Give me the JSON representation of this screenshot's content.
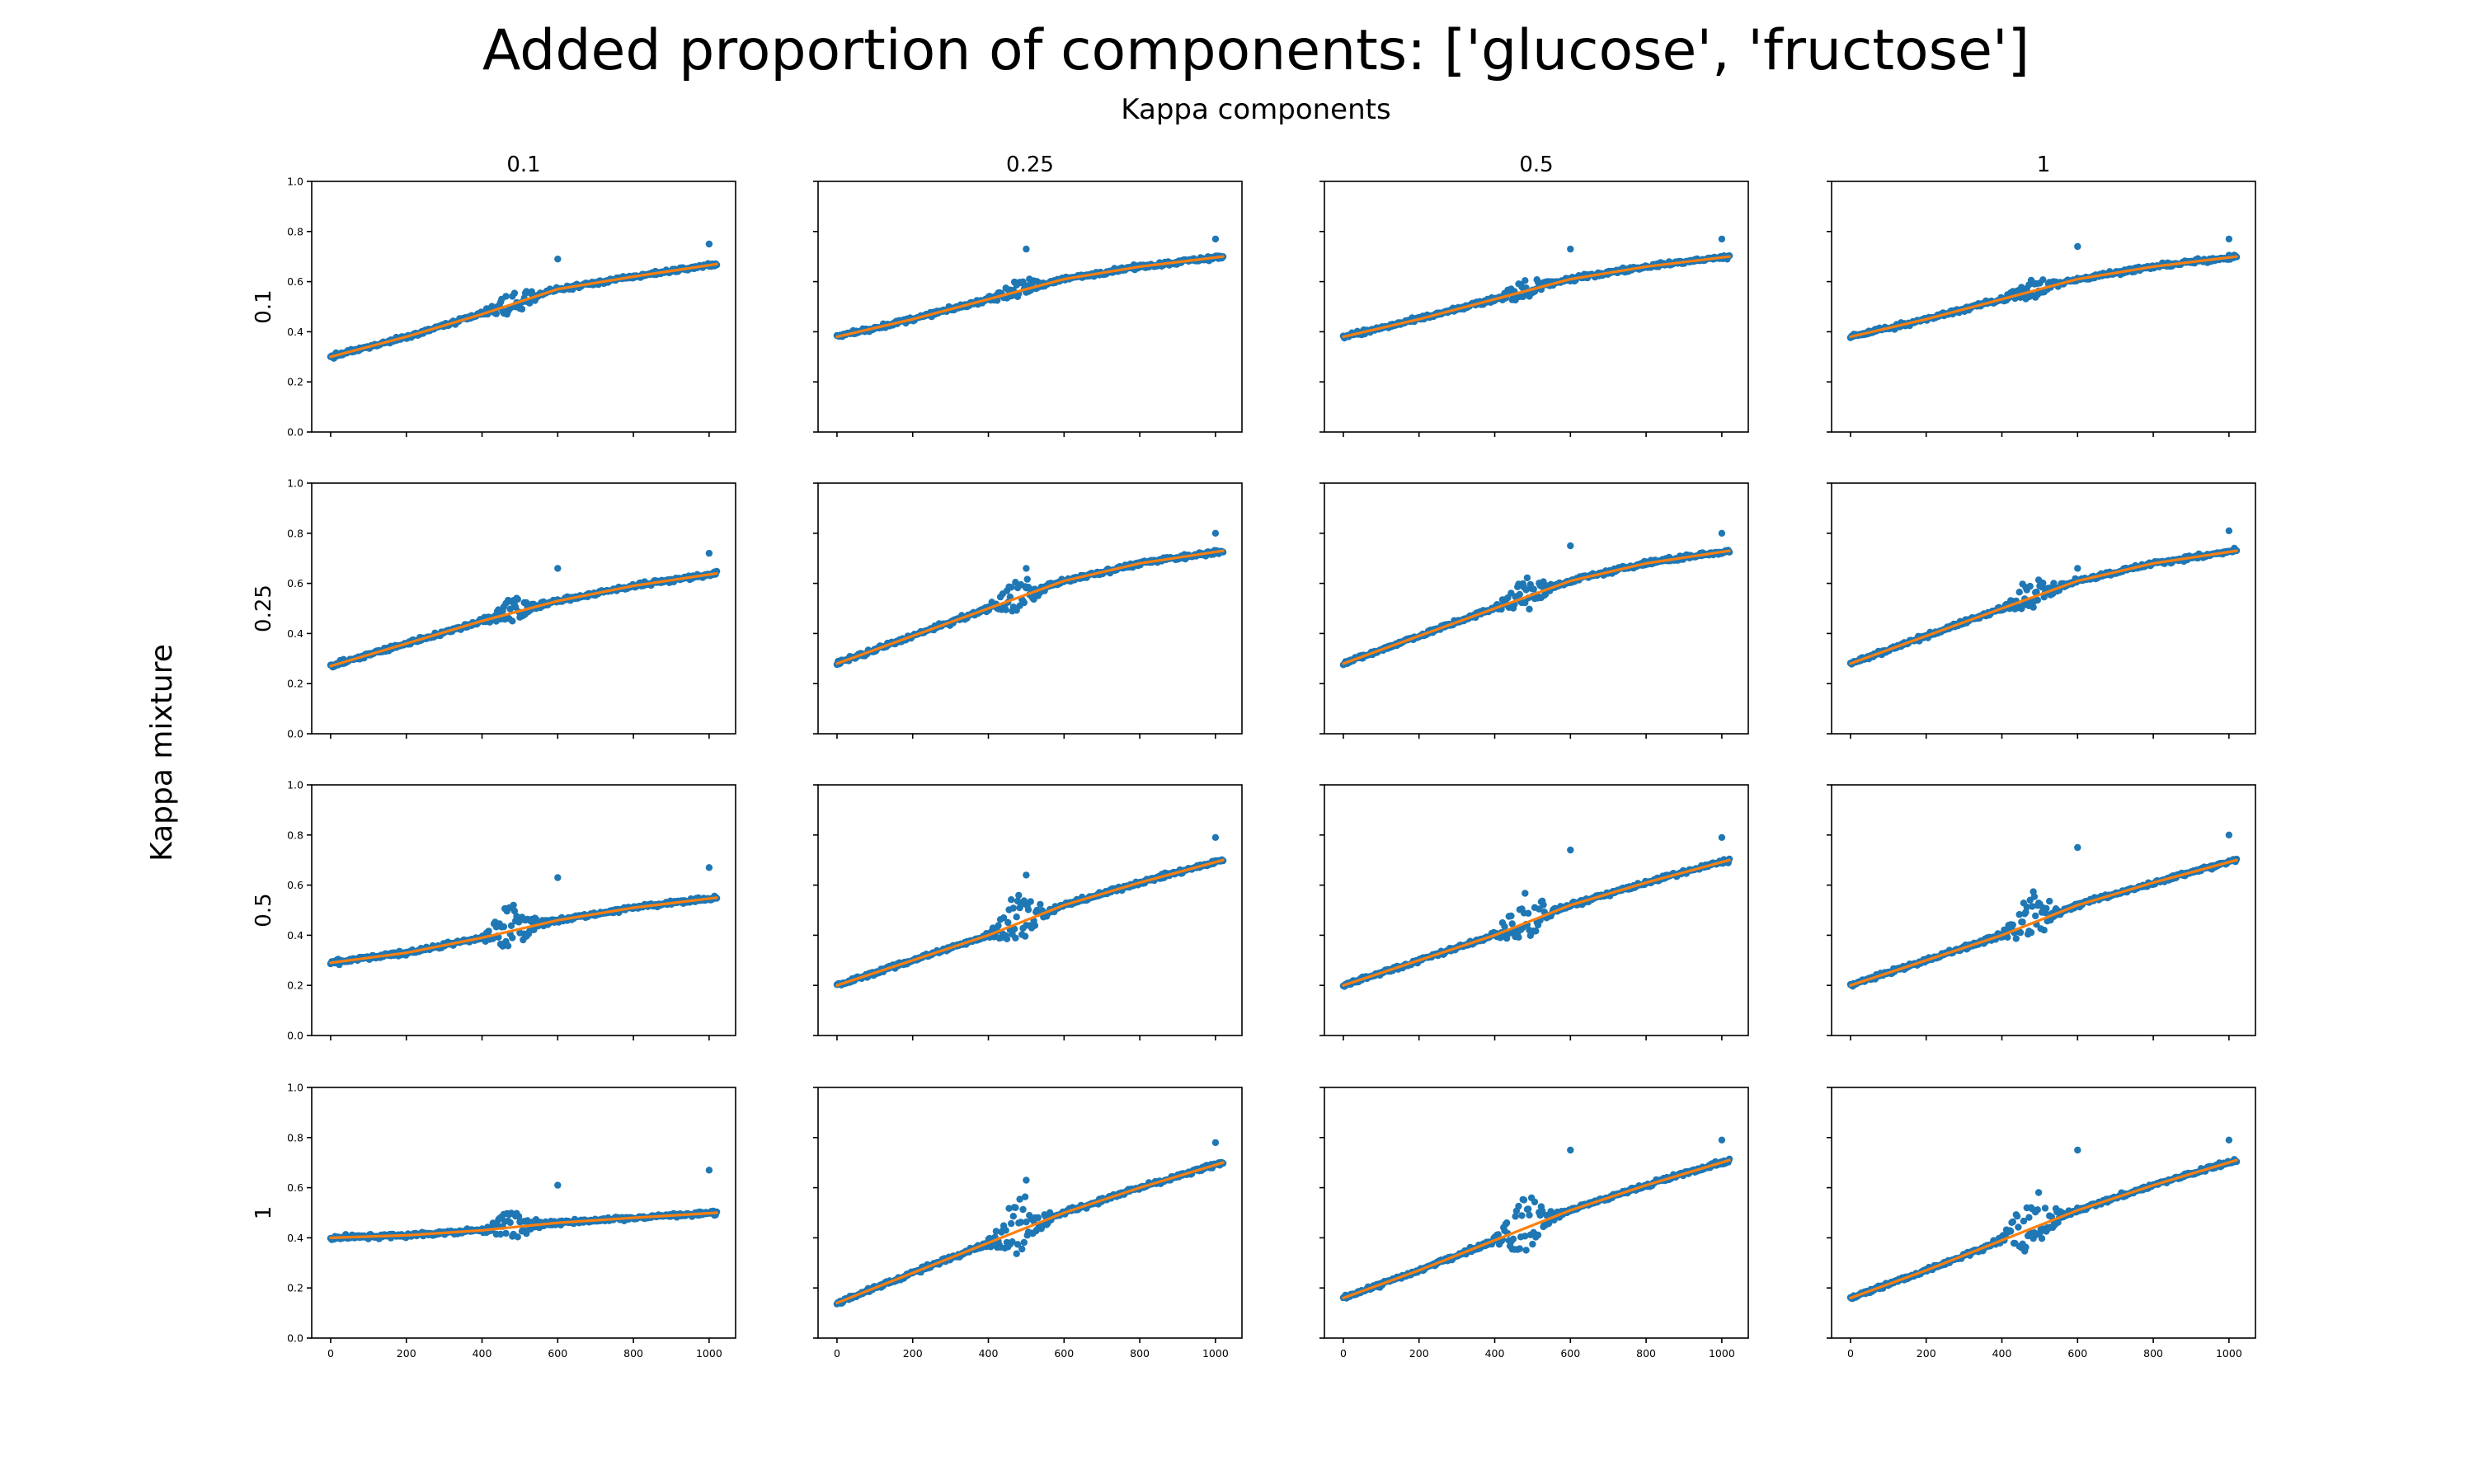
{
  "title": "Added proportion of components: ['glucose', 'fructose']",
  "column_label": "Kappa components",
  "row_label": "Kappa mixture",
  "colors": {
    "points": "#1f77b4",
    "fit": "#ff7f0e"
  },
  "chart_data": {
    "type": "scatter",
    "grid": false,
    "legend": "none",
    "xlim": [
      -50,
      1070
    ],
    "ylim": [
      0,
      1
    ],
    "x_ticks": [
      0,
      200,
      400,
      600,
      800,
      1000
    ],
    "y_ticks": [
      0.0,
      0.2,
      0.4,
      0.6,
      0.8,
      1.0
    ],
    "x_tick_labels": [
      "0",
      "200",
      "400",
      "600",
      "800",
      "1000"
    ],
    "y_tick_labels": [
      "0.0",
      "0.2",
      "0.4",
      "0.6",
      "0.8",
      "1.0"
    ],
    "column_titles": [
      "0.1",
      "0.25",
      "0.5",
      "1"
    ],
    "row_titles": [
      "0.1",
      "0.25",
      "0.5",
      "1"
    ],
    "panels": [
      [
        {
          "fit": [
            [
              0,
              0.3
            ],
            [
              200,
              0.38
            ],
            [
              400,
              0.47
            ],
            [
              600,
              0.57
            ],
            [
              800,
              0.62
            ],
            [
              1020,
              0.67
            ]
          ],
          "bump": 0.05,
          "max": [
            [
              600,
              0.69
            ],
            [
              1000,
              0.75
            ]
          ]
        },
        {
          "fit": [
            [
              0,
              0.38
            ],
            [
              200,
              0.45
            ],
            [
              400,
              0.53
            ],
            [
              600,
              0.61
            ],
            [
              800,
              0.66
            ],
            [
              1020,
              0.7
            ]
          ],
          "bump": 0.04,
          "max": [
            [
              500,
              0.73
            ],
            [
              1000,
              0.77
            ]
          ]
        },
        {
          "fit": [
            [
              0,
              0.38
            ],
            [
              200,
              0.45
            ],
            [
              400,
              0.53
            ],
            [
              600,
              0.61
            ],
            [
              800,
              0.66
            ],
            [
              1020,
              0.7
            ]
          ],
          "bump": 0.04,
          "max": [
            [
              600,
              0.73
            ],
            [
              1000,
              0.77
            ]
          ]
        },
        {
          "fit": [
            [
              0,
              0.38
            ],
            [
              200,
              0.45
            ],
            [
              400,
              0.53
            ],
            [
              600,
              0.61
            ],
            [
              800,
              0.66
            ],
            [
              1020,
              0.7
            ]
          ],
          "bump": 0.04,
          "max": [
            [
              600,
              0.74
            ],
            [
              1000,
              0.77
            ]
          ]
        }
      ],
      [
        {
          "fit": [
            [
              0,
              0.27
            ],
            [
              200,
              0.36
            ],
            [
              400,
              0.45
            ],
            [
              600,
              0.53
            ],
            [
              800,
              0.59
            ],
            [
              1020,
              0.64
            ]
          ],
          "bump": 0.06,
          "max": [
            [
              600,
              0.66
            ],
            [
              1000,
              0.72
            ]
          ]
        },
        {
          "fit": [
            [
              0,
              0.28
            ],
            [
              200,
              0.39
            ],
            [
              400,
              0.5
            ],
            [
              600,
              0.61
            ],
            [
              800,
              0.68
            ],
            [
              1020,
              0.73
            ]
          ],
          "bump": 0.08,
          "max": [
            [
              500,
              0.66
            ],
            [
              1000,
              0.8
            ]
          ]
        },
        {
          "fit": [
            [
              0,
              0.28
            ],
            [
              200,
              0.39
            ],
            [
              400,
              0.5
            ],
            [
              600,
              0.61
            ],
            [
              800,
              0.68
            ],
            [
              1020,
              0.73
            ]
          ],
          "bump": 0.08,
          "max": [
            [
              600,
              0.75
            ],
            [
              1000,
              0.8
            ]
          ]
        },
        {
          "fit": [
            [
              0,
              0.28
            ],
            [
              200,
              0.39
            ],
            [
              400,
              0.5
            ],
            [
              600,
              0.61
            ],
            [
              800,
              0.68
            ],
            [
              1020,
              0.73
            ]
          ],
          "bump": 0.08,
          "max": [
            [
              600,
              0.66
            ],
            [
              1000,
              0.81
            ]
          ]
        }
      ],
      [
        {
          "fit": [
            [
              0,
              0.29
            ],
            [
              200,
              0.33
            ],
            [
              400,
              0.39
            ],
            [
              600,
              0.46
            ],
            [
              800,
              0.51
            ],
            [
              1020,
              0.55
            ]
          ],
          "bump": 0.1,
          "max": [
            [
              600,
              0.63
            ],
            [
              1000,
              0.67
            ]
          ]
        },
        {
          "fit": [
            [
              0,
              0.2
            ],
            [
              200,
              0.3
            ],
            [
              400,
              0.4
            ],
            [
              600,
              0.52
            ],
            [
              800,
              0.61
            ],
            [
              1020,
              0.7
            ]
          ],
          "bump": 0.12,
          "max": [
            [
              500,
              0.64
            ],
            [
              1000,
              0.79
            ]
          ]
        },
        {
          "fit": [
            [
              0,
              0.2
            ],
            [
              200,
              0.3
            ],
            [
              400,
              0.4
            ],
            [
              600,
              0.52
            ],
            [
              800,
              0.61
            ],
            [
              1020,
              0.7
            ]
          ],
          "bump": 0.12,
          "max": [
            [
              600,
              0.74
            ],
            [
              1000,
              0.79
            ]
          ]
        },
        {
          "fit": [
            [
              0,
              0.2
            ],
            [
              200,
              0.3
            ],
            [
              400,
              0.4
            ],
            [
              600,
              0.52
            ],
            [
              800,
              0.61
            ],
            [
              1020,
              0.7
            ]
          ],
          "bump": 0.12,
          "max": [
            [
              600,
              0.75
            ],
            [
              1000,
              0.8
            ]
          ]
        }
      ],
      [
        {
          "fit": [
            [
              0,
              0.4
            ],
            [
              200,
              0.41
            ],
            [
              400,
              0.43
            ],
            [
              600,
              0.46
            ],
            [
              800,
              0.48
            ],
            [
              1020,
              0.5
            ]
          ],
          "bump": 0.07,
          "max": [
            [
              600,
              0.61
            ],
            [
              1000,
              0.67
            ]
          ]
        },
        {
          "fit": [
            [
              0,
              0.14
            ],
            [
              200,
              0.26
            ],
            [
              400,
              0.38
            ],
            [
              600,
              0.5
            ],
            [
              800,
              0.6
            ],
            [
              1020,
              0.7
            ]
          ],
          "bump": 0.15,
          "max": [
            [
              500,
              0.63
            ],
            [
              1000,
              0.78
            ]
          ]
        },
        {
          "fit": [
            [
              0,
              0.16
            ],
            [
              200,
              0.27
            ],
            [
              400,
              0.39
            ],
            [
              600,
              0.51
            ],
            [
              800,
              0.61
            ],
            [
              1020,
              0.71
            ]
          ],
          "bump": 0.15,
          "max": [
            [
              600,
              0.75
            ],
            [
              1000,
              0.79
            ]
          ]
        },
        {
          "fit": [
            [
              0,
              0.16
            ],
            [
              200,
              0.27
            ],
            [
              400,
              0.39
            ],
            [
              600,
              0.51
            ],
            [
              800,
              0.61
            ],
            [
              1020,
              0.71
            ]
          ],
          "bump": 0.15,
          "max": [
            [
              600,
              0.75
            ],
            [
              1000,
              0.79
            ]
          ]
        }
      ]
    ]
  }
}
